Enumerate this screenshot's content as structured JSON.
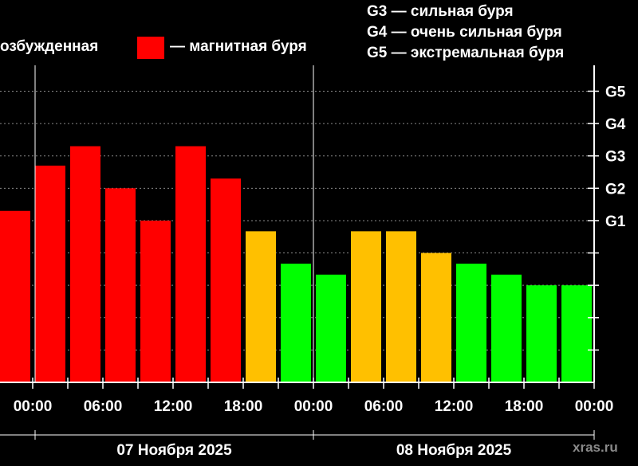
{
  "legend": {
    "excited": "озбужденная",
    "storm": "— магнитная буря",
    "storm_color": "#ff0000",
    "g3": "G3 — сильная буря",
    "g4": "G4 — очень сильная буря",
    "g5": "G5 — экстремальная буря"
  },
  "watermark": "xras.ru",
  "chart_data": {
    "type": "bar",
    "y_axis_labels": [
      "G5",
      "G4",
      "G3",
      "G2",
      "G1"
    ],
    "y_axis_label_levels": [
      9,
      8,
      7,
      6,
      5
    ],
    "ylim": [
      0,
      9.8
    ],
    "x_tick_labels": [
      "00:00",
      "06:00",
      "12:00",
      "18:00",
      "00:00",
      "06:00",
      "12:00",
      "18:00",
      "00:00"
    ],
    "date_labels": [
      "07 Ноября 2025",
      "08 Ноября 2025"
    ],
    "grid": true,
    "colors": {
      "storm": "#ff0000",
      "unsettled": "#ffc000",
      "quiet": "#00ff00"
    },
    "bars": [
      {
        "value": 5.3,
        "level": "storm"
      },
      {
        "value": 6.7,
        "level": "storm"
      },
      {
        "value": 7.3,
        "level": "storm"
      },
      {
        "value": 6.0,
        "level": "storm"
      },
      {
        "value": 5.0,
        "level": "storm"
      },
      {
        "value": 7.3,
        "level": "storm"
      },
      {
        "value": 6.3,
        "level": "storm"
      },
      {
        "value": 4.67,
        "level": "unsettled"
      },
      {
        "value": 3.67,
        "level": "quiet"
      },
      {
        "value": 3.33,
        "level": "quiet"
      },
      {
        "value": 4.67,
        "level": "unsettled"
      },
      {
        "value": 4.67,
        "level": "unsettled"
      },
      {
        "value": 4.0,
        "level": "unsettled"
      },
      {
        "value": 3.67,
        "level": "quiet"
      },
      {
        "value": 3.33,
        "level": "quiet"
      },
      {
        "value": 3.0,
        "level": "quiet"
      },
      {
        "value": 3.0,
        "level": "quiet"
      }
    ]
  }
}
